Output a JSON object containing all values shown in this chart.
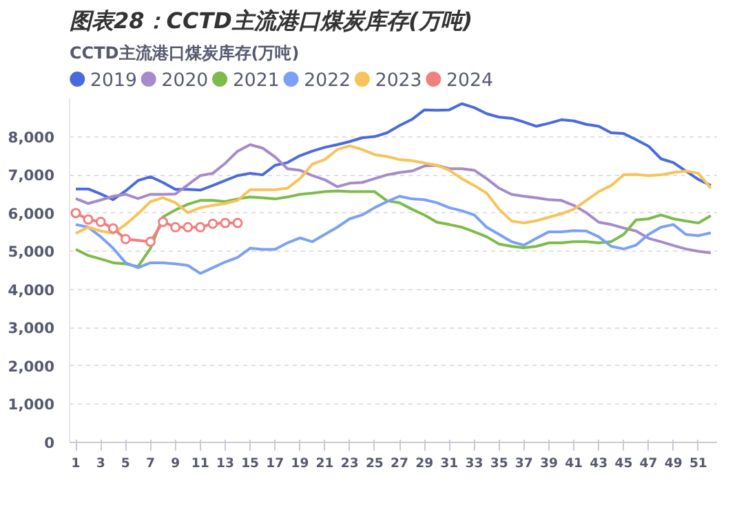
{
  "chart_data": {
    "type": "line",
    "title": "图表28：CCTD主流港口煤炭库存(万吨)",
    "subtitle": "CCTD主流港口煤炭库存(万吨)",
    "x": [
      1,
      2,
      3,
      4,
      5,
      6,
      7,
      8,
      9,
      10,
      11,
      12,
      13,
      14,
      15,
      16,
      17,
      18,
      19,
      20,
      21,
      22,
      23,
      24,
      25,
      26,
      27,
      28,
      29,
      30,
      31,
      32,
      33,
      34,
      35,
      36,
      37,
      38,
      39,
      40,
      41,
      42,
      43,
      44,
      45,
      46,
      47,
      48,
      49,
      50,
      51,
      52
    ],
    "xlim": [
      0.5,
      52.5
    ],
    "xticks": [
      1,
      3,
      5,
      7,
      9,
      11,
      13,
      15,
      17,
      19,
      21,
      23,
      25,
      27,
      29,
      31,
      33,
      35,
      37,
      39,
      41,
      43,
      45,
      47,
      49,
      51
    ],
    "ylim": [
      0,
      9000
    ],
    "yticks": [
      0,
      {
        "value": 1000,
        "label": "1,000"
      },
      {
        "value": 2000,
        "label": "2,000"
      },
      {
        "value": 3000,
        "label": "3,000"
      },
      {
        "value": 4000,
        "label": "4,000"
      },
      {
        "value": 5000,
        "label": "5,000"
      },
      {
        "value": 6000,
        "label": "6,000"
      },
      {
        "value": 7000,
        "label": "7,000"
      },
      {
        "value": 8000,
        "label": "8,000"
      }
    ],
    "grid": "y",
    "legend": "top left",
    "marker": "none",
    "line_style": "solid",
    "series": [
      {
        "name": "2019",
        "color": "#4a6bdc",
        "values": [
          6630,
          6630,
          6500,
          6350,
          6580,
          6850,
          6950,
          6800,
          6620,
          6620,
          6600,
          6720,
          6850,
          6980,
          7040,
          7000,
          7250,
          7320,
          7500,
          7620,
          7720,
          7790,
          7870,
          7970,
          8000,
          8100,
          8290,
          8450,
          8700,
          8690,
          8700,
          8860,
          8760,
          8600,
          8510,
          8480,
          8380,
          8270,
          8350,
          8440,
          8410,
          8320,
          8270,
          8100,
          8080,
          7920,
          7750,
          7420,
          7320,
          7100,
          6880,
          6720
        ]
      },
      {
        "name": "2020",
        "color": "#a58bcb",
        "values": [
          6380,
          6250,
          6340,
          6440,
          6490,
          6380,
          6490,
          6490,
          6500,
          6740,
          6980,
          7040,
          7300,
          7620,
          7790,
          7700,
          7470,
          7160,
          7120,
          6980,
          6870,
          6690,
          6780,
          6800,
          6900,
          7000,
          7060,
          7100,
          7230,
          7250,
          7160,
          7160,
          7120,
          6900,
          6650,
          6490,
          6440,
          6400,
          6350,
          6330,
          6200,
          6010,
          5760,
          5700,
          5610,
          5530,
          5340,
          5250,
          5150,
          5060,
          5000,
          4960
        ]
      },
      {
        "name": "2021",
        "color": "#7dbb4a",
        "values": [
          5050,
          4890,
          4800,
          4700,
          4670,
          4600,
          5080,
          5900,
          6080,
          6230,
          6330,
          6330,
          6300,
          6370,
          6420,
          6400,
          6370,
          6420,
          6490,
          6520,
          6560,
          6580,
          6560,
          6560,
          6560,
          6320,
          6270,
          6100,
          5950,
          5760,
          5700,
          5630,
          5510,
          5380,
          5190,
          5130,
          5090,
          5130,
          5220,
          5220,
          5250,
          5250,
          5220,
          5250,
          5440,
          5820,
          5850,
          5950,
          5850,
          5790,
          5740,
          5930
        ]
      },
      {
        "name": "2022",
        "color": "#7ba0f5",
        "values": [
          5700,
          5630,
          5380,
          5080,
          4700,
          4570,
          4700,
          4700,
          4670,
          4630,
          4420,
          4570,
          4720,
          4840,
          5080,
          5050,
          5050,
          5220,
          5350,
          5250,
          5440,
          5630,
          5850,
          5950,
          6140,
          6300,
          6440,
          6370,
          6350,
          6270,
          6140,
          6060,
          5950,
          5630,
          5440,
          5250,
          5160,
          5340,
          5510,
          5510,
          5540,
          5530,
          5380,
          5130,
          5060,
          5160,
          5440,
          5630,
          5700,
          5440,
          5410,
          5480
        ]
      },
      {
        "name": "2023",
        "color": "#f7c35a",
        "values": [
          5470,
          5630,
          5530,
          5470,
          5700,
          5980,
          6300,
          6400,
          6270,
          6010,
          6140,
          6200,
          6250,
          6330,
          6610,
          6610,
          6610,
          6650,
          6900,
          7280,
          7400,
          7660,
          7760,
          7660,
          7530,
          7480,
          7400,
          7370,
          7310,
          7250,
          7120,
          6900,
          6720,
          6520,
          6100,
          5790,
          5740,
          5800,
          5890,
          5980,
          6100,
          6330,
          6560,
          6720,
          7000,
          7010,
          6980,
          7000,
          7060,
          7100,
          7040,
          6650
        ]
      },
      {
        "name": "2024",
        "color": "#f08080",
        "marker": "circle",
        "values": [
          6000,
          5830,
          5770,
          5600,
          5320,
          null,
          5250,
          5770,
          5630,
          5630,
          5630,
          5720,
          5740,
          5740,
          null,
          null,
          null,
          null,
          null,
          null,
          null,
          null,
          null,
          null,
          null,
          null,
          null,
          null,
          null,
          null,
          null,
          null,
          null,
          null,
          null,
          null,
          null,
          null,
          null,
          null,
          null,
          null,
          null,
          null,
          null,
          null,
          null,
          null,
          null,
          null,
          null,
          null
        ]
      }
    ]
  }
}
